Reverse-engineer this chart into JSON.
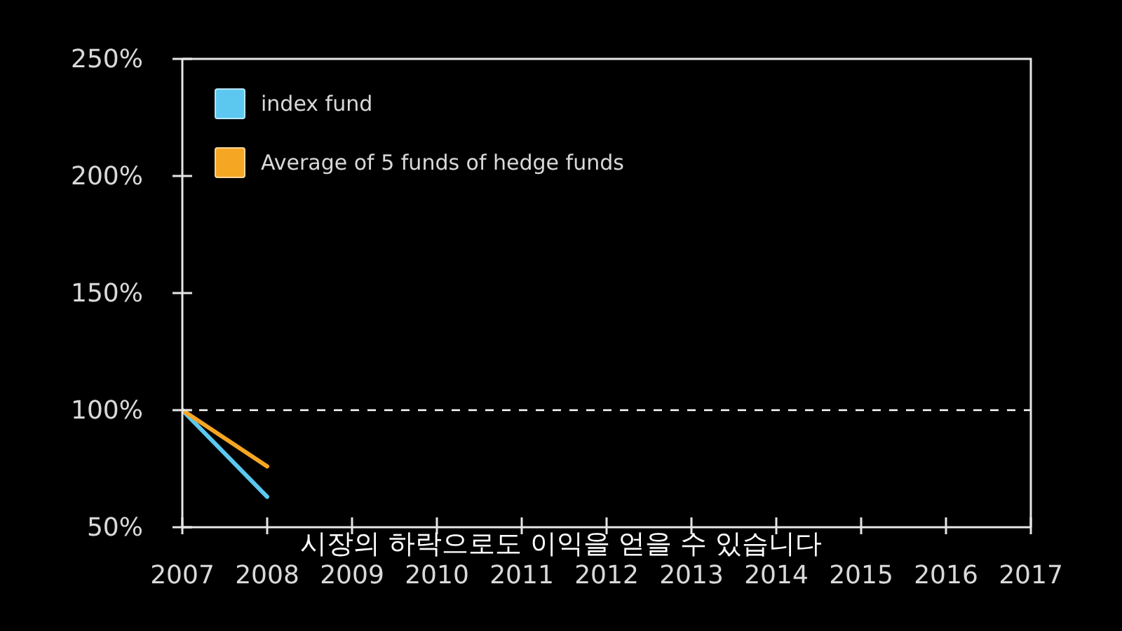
{
  "chart_data": {
    "type": "line",
    "x": [
      2007,
      2008
    ],
    "series": [
      {
        "name": "index fund",
        "color": "#5cc8f0",
        "values": [
          100,
          63
        ]
      },
      {
        "name": "Average of 5 funds of hedge funds",
        "color": "#f5a623",
        "values": [
          100,
          76
        ]
      }
    ],
    "xlim": [
      2007,
      2017
    ],
    "xticks": [
      2007,
      2008,
      2009,
      2010,
      2011,
      2012,
      2013,
      2014,
      2015,
      2016,
      2017
    ],
    "ylim": [
      50,
      250
    ],
    "yticks": [
      {
        "value": 50,
        "label": "50%"
      },
      {
        "value": 100,
        "label": "100%"
      },
      {
        "value": 150,
        "label": "150%"
      },
      {
        "value": 200,
        "label": "200%"
      },
      {
        "value": 250,
        "label": "250%"
      }
    ],
    "grid": false,
    "legend": "top left",
    "marker": "none",
    "line_style": "solid",
    "ref_lines": [
      {
        "axis": "y",
        "value": 100,
        "color": "#ffffff",
        "line_style": "dashed"
      }
    ],
    "annotations": [
      "시장의 하락으로도 이익을 얻을 수 있습니다"
    ]
  }
}
